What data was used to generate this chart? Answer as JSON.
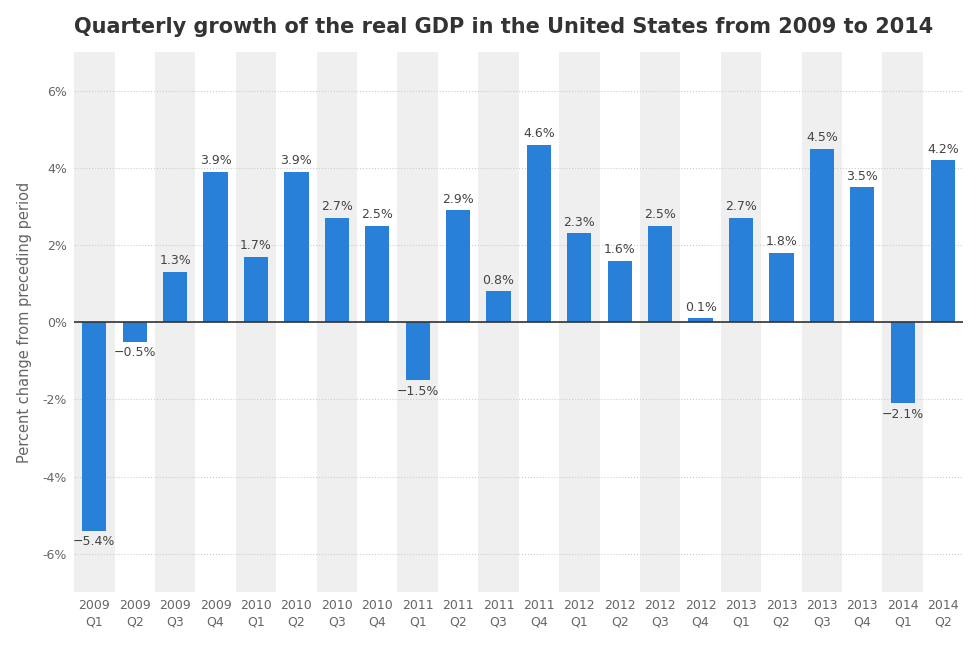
{
  "title": "Quarterly growth of the real GDP in the United States from 2009 to 2014",
  "ylabel": "Percent change from preceding period",
  "categories": [
    "2009\nQ1",
    "2009\nQ2",
    "2009\nQ3",
    "2009\nQ4",
    "2010\nQ1",
    "2010\nQ2",
    "2010\nQ3",
    "2010\nQ4",
    "2011\nQ1",
    "2011\nQ2",
    "2011\nQ3",
    "2011\nQ4",
    "2012\nQ1",
    "2012\nQ2",
    "2012\nQ3",
    "2012\nQ4",
    "2013\nQ1",
    "2013\nQ2",
    "2013\nQ3",
    "2013\nQ4",
    "2014\nQ1",
    "2014\nQ2"
  ],
  "values": [
    -5.4,
    -0.5,
    1.3,
    3.9,
    1.7,
    3.9,
    2.7,
    2.5,
    -1.5,
    2.9,
    0.8,
    4.6,
    2.3,
    1.6,
    2.5,
    0.1,
    2.7,
    1.8,
    4.5,
    3.5,
    -2.1,
    4.2
  ],
  "bar_color": "#2980d9",
  "background_color": "#ffffff",
  "plot_bg_color": "#ffffff",
  "col_band_color": "#efefef",
  "grid_color": "#cccccc",
  "zero_line_color": "#333333",
  "ylim": [
    -7,
    7
  ],
  "yticks": [
    -6,
    -4,
    -2,
    0,
    2,
    4,
    6
  ],
  "ytick_labels": [
    "-6%",
    "-4%",
    "-2%",
    "0%",
    "2%",
    "4%",
    "6%"
  ],
  "title_fontsize": 15,
  "ylabel_fontsize": 10.5,
  "tick_fontsize": 9,
  "label_fontsize": 9,
  "bar_width": 0.6
}
